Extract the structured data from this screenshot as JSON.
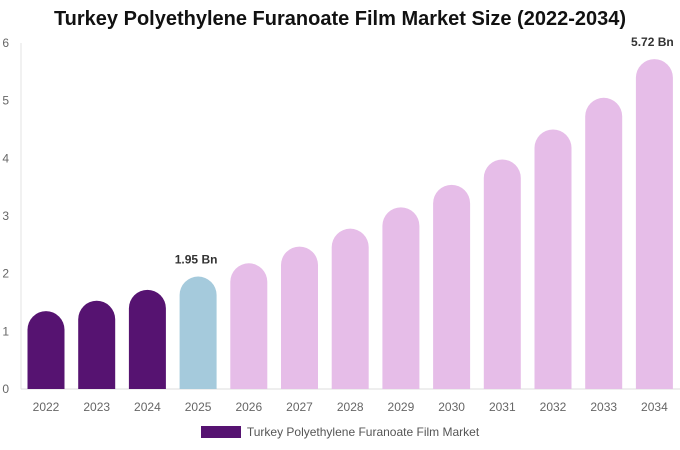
{
  "chart_data": {
    "type": "bar",
    "title": "Turkey Polyethylene Furanoate Film Market Size (2022-2034)",
    "xlabel": "",
    "ylabel": "",
    "ylim": [
      0,
      6
    ],
    "yticks": [
      "0",
      "1",
      "2",
      "3",
      "4",
      "5",
      "6"
    ],
    "grid": false,
    "legend_position": "bottom",
    "categories": [
      "2022",
      "2023",
      "2024",
      "2025",
      "2026",
      "2027",
      "2028",
      "2029",
      "2030",
      "2031",
      "2032",
      "2033",
      "2034"
    ],
    "series": [
      {
        "name": "Turkey Polyethylene Furanoate Film Market",
        "values": [
          1.35,
          1.53,
          1.72,
          1.95,
          2.18,
          2.47,
          2.78,
          3.15,
          3.54,
          3.98,
          4.5,
          5.05,
          5.72
        ]
      }
    ],
    "bar_colors": [
      "#561371",
      "#561371",
      "#561371",
      "#a5cadc",
      "#e6bde8",
      "#e6bde8",
      "#e6bde8",
      "#e6bde8",
      "#e6bde8",
      "#e6bde8",
      "#e6bde8",
      "#e6bde8",
      "#e6bde8"
    ],
    "data_labels": [
      {
        "category": "2025",
        "text": "1.95 Bn"
      },
      {
        "category": "2034",
        "text": "5.72 Bn"
      }
    ]
  }
}
